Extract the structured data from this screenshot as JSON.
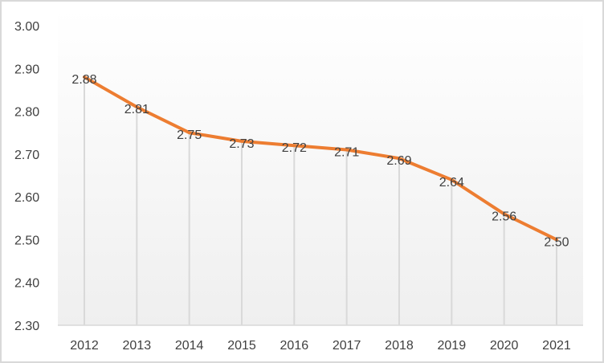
{
  "chart_data": {
    "type": "line",
    "title": "",
    "xlabel": "",
    "ylabel": "",
    "categories": [
      "2012",
      "2013",
      "2014",
      "2015",
      "2016",
      "2017",
      "2018",
      "2019",
      "2020",
      "2021"
    ],
    "series": [
      {
        "values": [
          2.88,
          2.81,
          2.75,
          2.73,
          2.72,
          2.71,
          2.69,
          2.64,
          2.56,
          2.5
        ],
        "color": "#ED7D31"
      }
    ],
    "data_labels": [
      "2.88",
      "2.81",
      "2.75",
      "2.73",
      "2.72",
      "2.71",
      "2.69",
      "2.64",
      "2.56",
      "2.50"
    ],
    "ylim": [
      2.3,
      3.0
    ],
    "yticks": [
      "2.30",
      "2.40",
      "2.50",
      "2.60",
      "2.70",
      "2.80",
      "2.90",
      "3.00"
    ],
    "drop_lines": true,
    "grid": false,
    "legend": "none",
    "colors": {
      "line": "#ED7D31",
      "drop_line": "#d9d9d9",
      "text": "#404040"
    }
  }
}
